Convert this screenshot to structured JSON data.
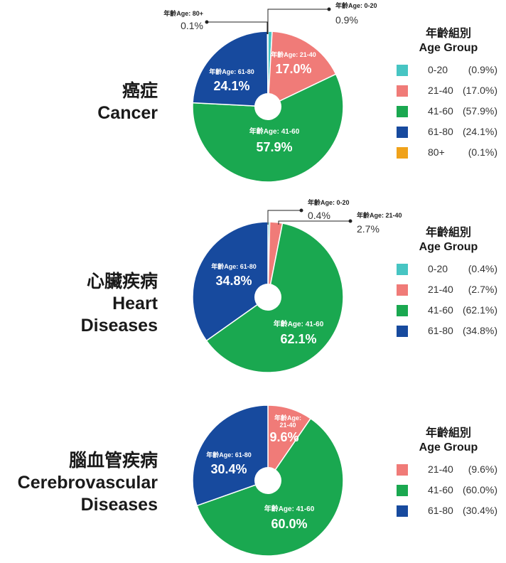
{
  "colors": {
    "0-20": "#47c5c3",
    "21-40": "#f07b78",
    "41-60": "#1aa850",
    "61-80": "#174a9e",
    "80+": "#f0a21a"
  },
  "chart_data": [
    {
      "type": "pie",
      "title_zh": "癌症",
      "title_en": [
        "Cancer"
      ],
      "legend_title_zh": "年齡組別",
      "legend_title_en": "Age Group",
      "categories": [
        "0-20",
        "21-40",
        "41-60",
        "61-80",
        "80+"
      ],
      "values": [
        0.9,
        17.0,
        57.9,
        24.1,
        0.1
      ],
      "slice_labels": [
        "年齡Age: 0-20",
        "年齡Age: 21-40",
        "年齡Age: 41-60",
        "年齡Age: 61-80",
        "年齡Age: 80+"
      ],
      "value_labels": [
        "0.9%",
        "17.0%",
        "57.9%",
        "24.1%",
        "0.1%"
      ],
      "legend": [
        {
          "range": "0-20",
          "pct": "(0.9%)"
        },
        {
          "range": "21-40",
          "pct": "(17.0%)"
        },
        {
          "range": "41-60",
          "pct": "(57.9%)"
        },
        {
          "range": "61-80",
          "pct": "(24.1%)"
        },
        {
          "range": "80+",
          "pct": "(0.1%)"
        }
      ]
    },
    {
      "type": "pie",
      "title_zh": "心臟疾病",
      "title_en": [
        "Heart",
        "Diseases"
      ],
      "legend_title_zh": "年齡組別",
      "legend_title_en": "Age Group",
      "categories": [
        "0-20",
        "21-40",
        "41-60",
        "61-80"
      ],
      "values": [
        0.4,
        2.7,
        62.1,
        34.8
      ],
      "slice_labels": [
        "年齡Age: 0-20",
        "年齡Age: 21-40",
        "年齡Age: 41-60",
        "年齡Age: 61-80"
      ],
      "value_labels": [
        "0.4%",
        "2.7%",
        "62.1%",
        "34.8%"
      ],
      "legend": [
        {
          "range": "0-20",
          "pct": "(0.4%)"
        },
        {
          "range": "21-40",
          "pct": "(2.7%)"
        },
        {
          "range": "41-60",
          "pct": "(62.1%)"
        },
        {
          "range": "61-80",
          "pct": "(34.8%)"
        }
      ]
    },
    {
      "type": "pie",
      "title_zh": "腦血管疾病",
      "title_en": [
        "Cerebrovascular",
        "Diseases"
      ],
      "legend_title_zh": "年齡組別",
      "legend_title_en": "Age Group",
      "categories": [
        "21-40",
        "41-60",
        "61-80"
      ],
      "values": [
        9.6,
        60.0,
        30.4
      ],
      "slice_labels": [
        "年齡Age: 21-40",
        "年齡Age: 41-60",
        "年齡Age: 61-80"
      ],
      "value_labels": [
        "9.6%",
        "60.0%",
        "30.4%"
      ],
      "legend": [
        {
          "range": "21-40",
          "pct": "(9.6%)"
        },
        {
          "range": "41-60",
          "pct": "(60.0%)"
        },
        {
          "range": "61-80",
          "pct": "(30.4%)"
        }
      ]
    }
  ]
}
